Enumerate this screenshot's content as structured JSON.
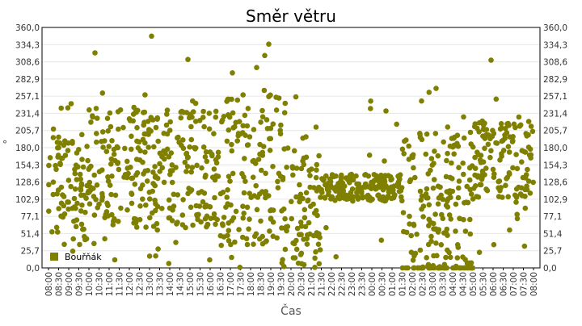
{
  "chart_data": {
    "type": "scatter",
    "title": "Směr větru",
    "xlabel": "Čas",
    "ylabel": "°",
    "ylim": [
      0,
      360
    ],
    "y_ticks": [
      "0,0",
      "25,7",
      "51,4",
      "77,1",
      "102,9",
      "128,6",
      "154,3",
      "180,0",
      "205,7",
      "231,4",
      "257,1",
      "282,9",
      "308,6",
      "334,3",
      "360,0"
    ],
    "x_ticks": [
      "08:00",
      "08:30",
      "09:00",
      "09:30",
      "10:00",
      "10:30",
      "11:00",
      "11:30",
      "12:00",
      "12:30",
      "13:00",
      "13:30",
      "14:00",
      "14:30",
      "15:00",
      "15:30",
      "16:00",
      "16:30",
      "17:00",
      "17:30",
      "18:00",
      "18:30",
      "19:00",
      "19:30",
      "20:00",
      "20:30",
      "21:00",
      "21:30",
      "22:00",
      "22:30",
      "23:00",
      "23:30",
      "00:00",
      "00:30",
      "01:00",
      "01:30",
      "02:00",
      "02:30",
      "03:00",
      "03:30",
      "04:00",
      "04:30",
      "05:00",
      "05:30",
      "06:00",
      "06:30",
      "07:00",
      "07:30",
      "08:00"
    ],
    "x_unit": "hours since 08:00, 0 to 24",
    "grid": true,
    "legend_position": "bottom-left",
    "series": [
      {
        "name": "Bouřňák",
        "color": "#808000",
        "segments": [
          {
            "t0": 0.0,
            "t1": 2.0,
            "y_range": [
              40,
              200
            ],
            "sparse": 0.15
          },
          {
            "t0": 2.0,
            "t1": 5.0,
            "y_range": [
              60,
              240
            ],
            "sparse": 0.1
          },
          {
            "t0": 5.0,
            "t1": 8.5,
            "y_range": [
              60,
              240
            ],
            "sparse": 0.1
          },
          {
            "t0": 8.5,
            "t1": 11.5,
            "y_range": [
              30,
              260
            ],
            "sparse": 0.15
          },
          {
            "t0": 11.5,
            "t1": 13.5,
            "y_range": [
              0,
              180
            ],
            "sparse": 0.1
          },
          {
            "t0": 13.5,
            "t1": 17.5,
            "y_range": [
              100,
              140
            ],
            "sparse": 0.05
          },
          {
            "t0": 17.5,
            "t1": 21.0,
            "y_range": [
              0,
              200
            ],
            "sparse": 0.3
          },
          {
            "t0": 21.0,
            "t1": 24.0,
            "y_range": [
              100,
              220
            ],
            "sparse": 0.1
          }
        ],
        "outliers": [
          {
            "x": 2.3,
            "y": 322
          },
          {
            "x": 5.1,
            "y": 347
          },
          {
            "x": 6.9,
            "y": 312
          },
          {
            "x": 10.3,
            "y": 300
          },
          {
            "x": 10.9,
            "y": 335
          },
          {
            "x": 10.7,
            "y": 318
          },
          {
            "x": 9.1,
            "y": 292
          },
          {
            "x": 16.7,
            "y": 235
          },
          {
            "x": 21.9,
            "y": 311
          },
          {
            "x": 1.2,
            "y": 25
          },
          {
            "x": 12.2,
            "y": 15
          },
          {
            "x": 18.8,
            "y": 5
          }
        ]
      }
    ]
  }
}
